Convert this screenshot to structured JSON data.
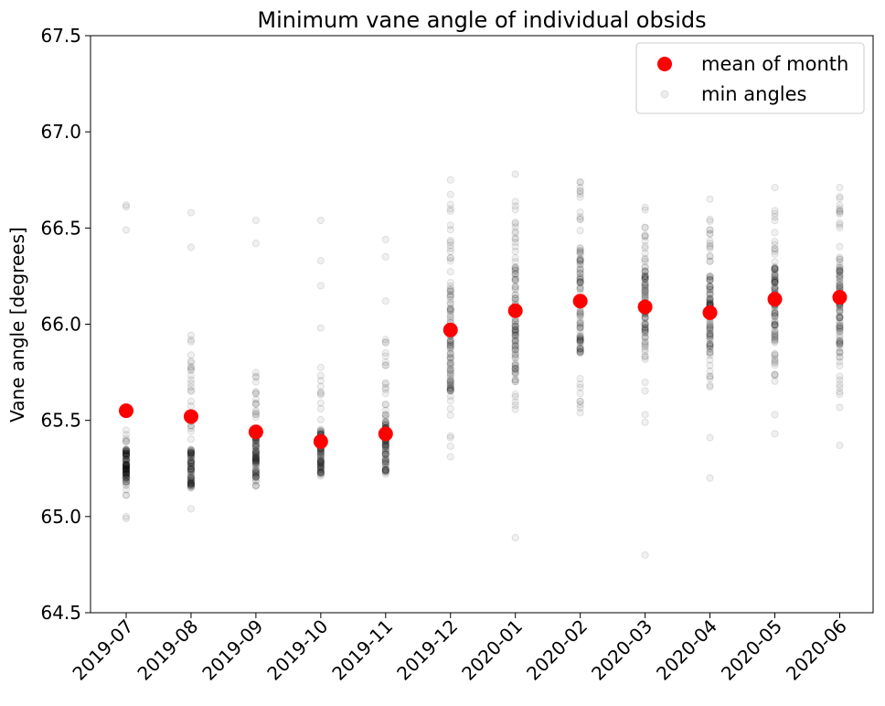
{
  "chart_data": {
    "type": "scatter",
    "title": "Minimum vane angle of individual obsids",
    "xlabel": "",
    "ylabel": "Vane angle [degrees]",
    "categories": [
      "2019-07",
      "2019-08",
      "2019-09",
      "2019-10",
      "2019-11",
      "2019-12",
      "2020-01",
      "2020-02",
      "2020-03",
      "2020-04",
      "2020-05",
      "2020-06"
    ],
    "ylim": [
      64.5,
      67.5
    ],
    "yticks": [
      "64.5",
      "65.0",
      "65.5",
      "66.0",
      "66.5",
      "67.0",
      "67.5"
    ],
    "grid": false,
    "legend_position": "top-right",
    "series": [
      {
        "name": "mean of month",
        "color": "#ff0000",
        "values": [
          65.55,
          65.52,
          65.44,
          65.39,
          65.43,
          65.97,
          66.07,
          66.12,
          66.09,
          66.06,
          66.13,
          66.14
        ]
      },
      {
        "name": "min angles",
        "color": "#000000",
        "distribution": [
          {
            "range": [
              65.1,
              65.45
            ],
            "core": [
              65.18,
              65.35
            ],
            "outliers": [
              64.99,
              65.0,
              66.49,
              66.61,
              66.62
            ]
          },
          {
            "range": [
              65.1,
              65.95
            ],
            "core": [
              65.15,
              65.35
            ],
            "outliers": [
              65.04,
              66.4,
              66.58
            ]
          },
          {
            "range": [
              65.15,
              65.75
            ],
            "core": [
              65.2,
              65.45
            ],
            "outliers": [
              66.42,
              66.54
            ]
          },
          {
            "range": [
              65.21,
              65.8
            ],
            "core": [
              65.22,
              65.45
            ],
            "outliers": [
              65.98,
              66.2,
              66.33,
              66.54
            ]
          },
          {
            "range": [
              65.2,
              65.95
            ],
            "core": [
              65.22,
              65.5
            ],
            "outliers": [
              66.12,
              66.35,
              66.44
            ]
          },
          {
            "range": [
              65.3,
              66.7
            ],
            "core": [
              65.65,
              66.2
            ],
            "outliers": [
              66.75
            ]
          },
          {
            "range": [
              65.55,
              66.75
            ],
            "core": [
              65.7,
              66.35
            ],
            "outliers": [
              64.89,
              66.78
            ]
          },
          {
            "range": [
              65.55,
              66.75
            ],
            "core": [
              65.85,
              66.4
            ],
            "outliers": [
              65.54,
              66.74
            ]
          },
          {
            "range": [
              65.6,
              66.65
            ],
            "core": [
              65.85,
              66.3
            ],
            "outliers": [
              64.8,
              65.49,
              65.53
            ]
          },
          {
            "range": [
              65.65,
              66.55
            ],
            "core": [
              65.85,
              66.25
            ],
            "outliers": [
              65.2,
              65.41,
              66.65
            ]
          },
          {
            "range": [
              65.7,
              66.6
            ],
            "core": [
              65.9,
              66.3
            ],
            "outliers": [
              65.43,
              65.53,
              66.71
            ]
          },
          {
            "range": [
              65.5,
              66.7
            ],
            "core": [
              65.85,
              66.35
            ],
            "outliers": [
              65.37,
              66.71
            ]
          }
        ]
      }
    ]
  }
}
